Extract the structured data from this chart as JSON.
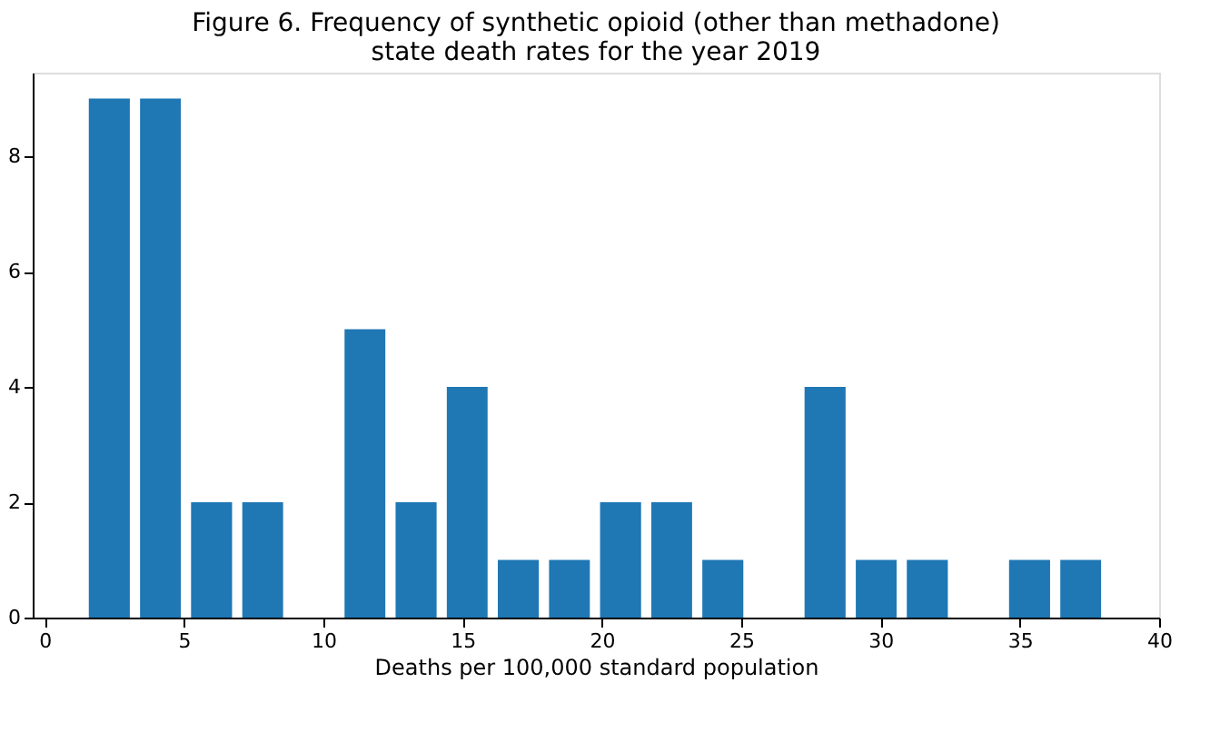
{
  "chart_data": {
    "type": "histogram",
    "title": "Figure 6. Frequency of synthetic opioid (other than methadone)\nstate death rates for the year 2019",
    "xlabel": "Deaths per 100,000 standard population",
    "bins": [
      1.4,
      3.24,
      5.07,
      6.91,
      8.74,
      10.58,
      12.41,
      14.25,
      16.08,
      17.92,
      19.75,
      21.59,
      23.42,
      25.26,
      27.09,
      28.93,
      30.76,
      32.6,
      34.43,
      36.27,
      38.1
    ],
    "values": [
      9,
      9,
      2,
      2,
      0,
      5,
      2,
      4,
      1,
      1,
      2,
      2,
      1,
      0,
      4,
      1,
      1,
      0,
      1,
      1
    ],
    "color": "#1f77b4",
    "xlim": [
      -0.43,
      40.0
    ],
    "ylim": [
      0,
      9.45
    ],
    "xticks": [
      0,
      5,
      10,
      15,
      20,
      25,
      30,
      35,
      40
    ],
    "yticks": [
      0,
      2,
      4,
      6,
      8
    ],
    "grid": false
  }
}
